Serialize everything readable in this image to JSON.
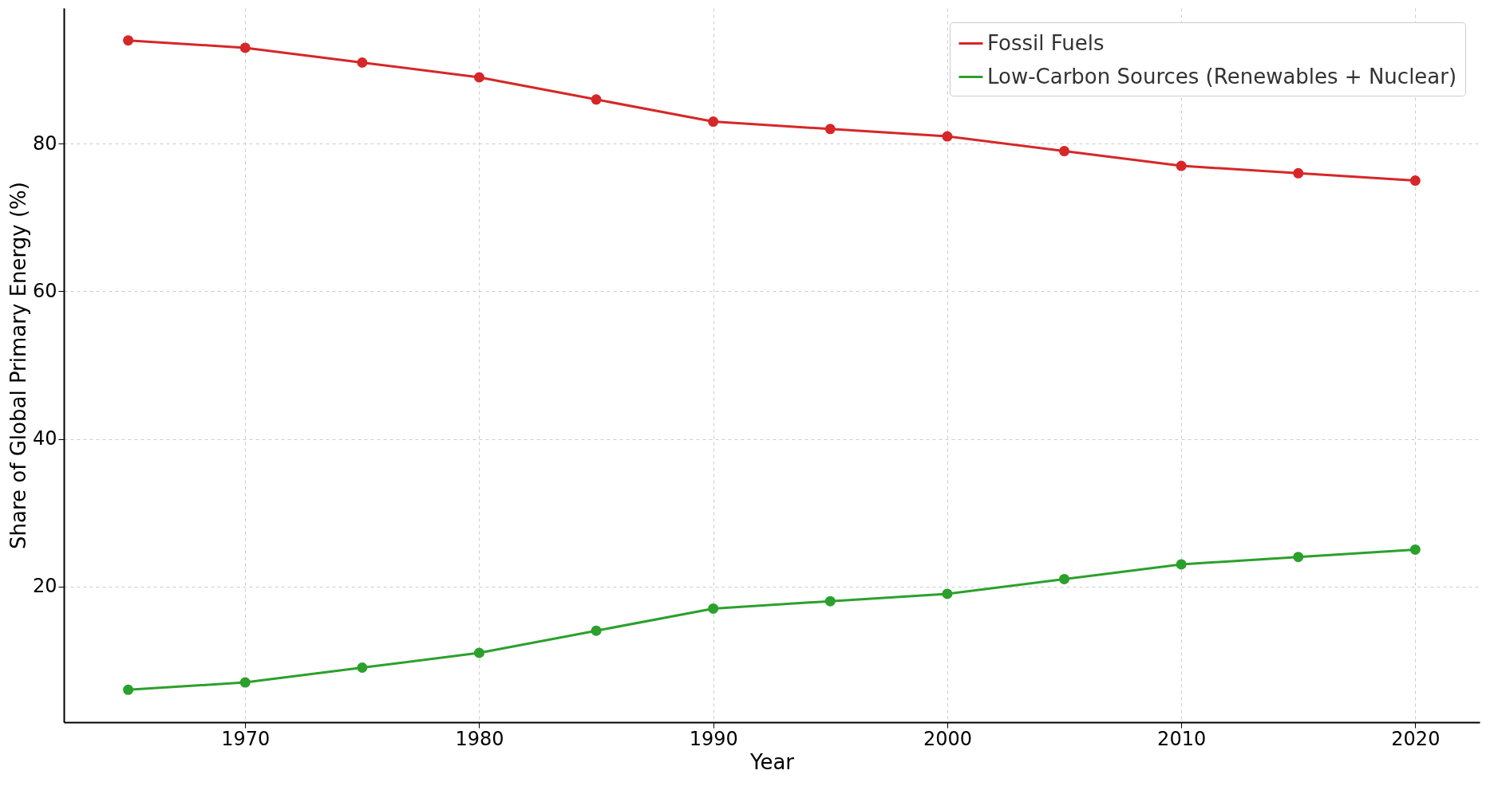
{
  "chart_data": {
    "type": "line",
    "xlabel": "Year",
    "ylabel": "Share of Global Primary Energy (%)",
    "x": [
      1965,
      1970,
      1975,
      1980,
      1985,
      1990,
      1995,
      2000,
      2005,
      2010,
      2015,
      2020
    ],
    "series": [
      {
        "name": "Fossil Fuels",
        "color": "#d62728",
        "values": [
          94,
          93,
          91,
          89,
          86,
          83,
          82,
          81,
          79,
          77,
          76,
          75
        ]
      },
      {
        "name": "Low-Carbon Sources (Renewables + Nuclear)",
        "color": "#2ca02c",
        "values": [
          6,
          7,
          9,
          11,
          14,
          17,
          18,
          19,
          21,
          23,
          24,
          25
        ]
      }
    ],
    "xlim": [
      1962.25,
      2022.75
    ],
    "xticks": [
      1970,
      1980,
      1990,
      2000,
      2010,
      2020
    ],
    "ylim": [
      1.6,
      98.4
    ],
    "yticks": [
      20,
      40,
      60,
      80
    ],
    "grid": true,
    "legend": "top right",
    "marker": "circle",
    "line_style": "solid"
  }
}
